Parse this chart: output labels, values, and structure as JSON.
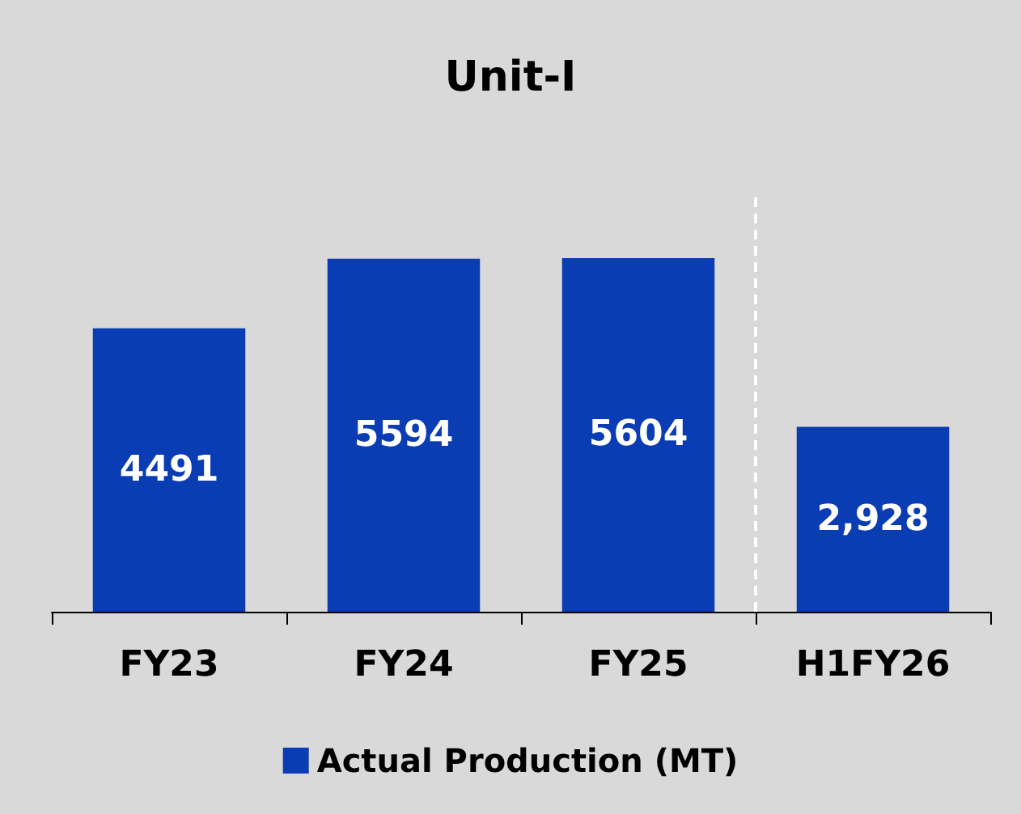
{
  "chart_data": {
    "type": "bar",
    "title": "Unit-I",
    "categories": [
      "FY23",
      "FY24",
      "FY25",
      "H1FY26"
    ],
    "series": [
      {
        "name": "Actual Production (MT)",
        "color": "#0a3cb4",
        "values": [
          4491,
          5594,
          5604,
          2928
        ],
        "value_labels": [
          "4491",
          "5594",
          "5604",
          "2,928"
        ]
      }
    ],
    "legend": "bottom",
    "grid": false
  }
}
